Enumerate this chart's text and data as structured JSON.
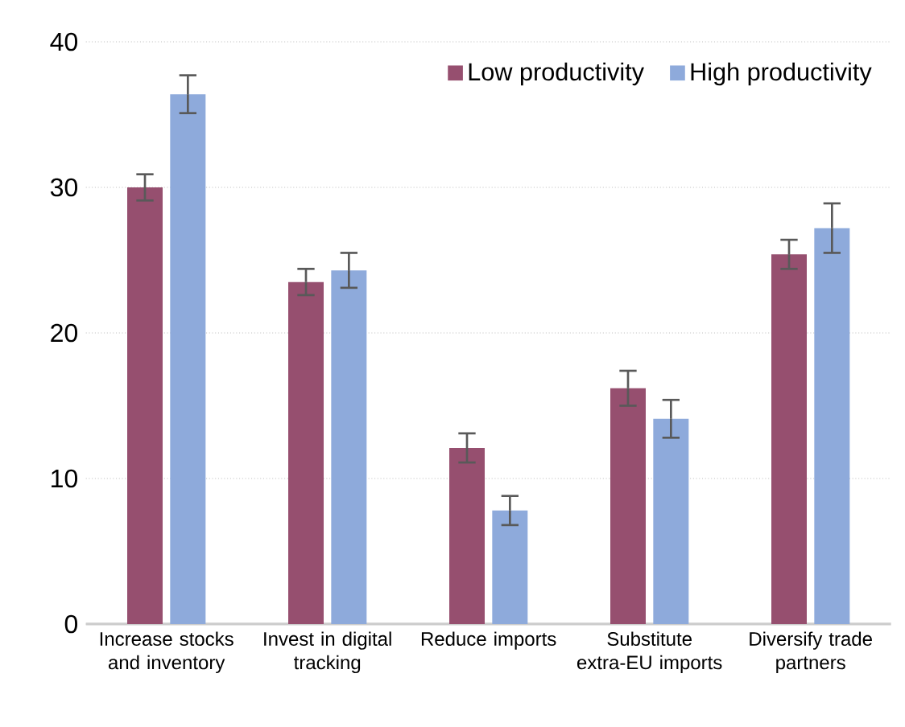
{
  "chart_data": {
    "type": "bar",
    "categories": [
      "Increase stocks and inventory",
      "Invest in digital tracking",
      "Reduce imports",
      "Substitute extra-EU imports",
      "Diversify trade partners"
    ],
    "series": [
      {
        "name": "Low productivity",
        "color": "#964f6f",
        "values": [
          30.0,
          23.5,
          12.1,
          16.2,
          25.4
        ],
        "errors": [
          0.9,
          0.9,
          1.0,
          1.2,
          1.0
        ]
      },
      {
        "name": "High productivity",
        "color": "#8eaadb",
        "values": [
          36.4,
          24.3,
          7.8,
          14.1,
          27.2
        ],
        "errors": [
          1.3,
          1.2,
          1.0,
          1.3,
          1.7
        ]
      }
    ],
    "ylim": [
      0,
      40
    ],
    "yticks": [
      0,
      10,
      20,
      30,
      40
    ],
    "grid": "y",
    "legend": "top right"
  }
}
